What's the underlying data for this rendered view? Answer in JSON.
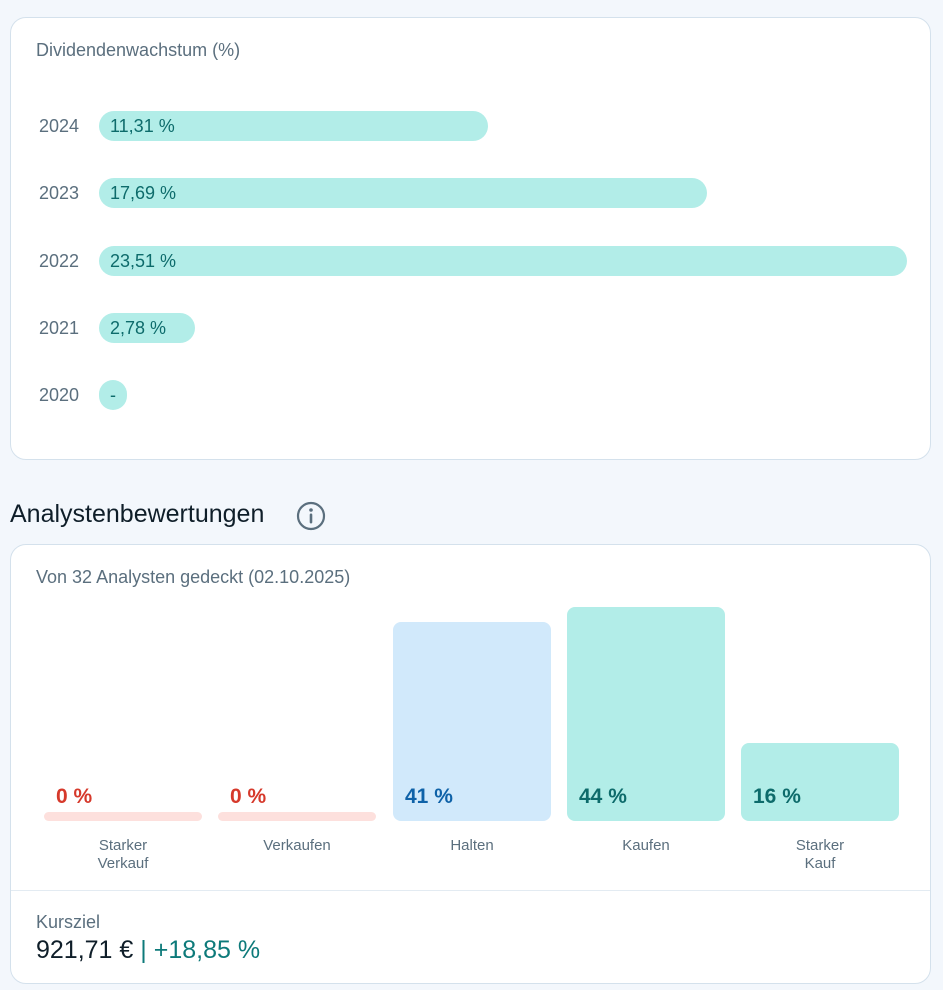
{
  "dividend_card": {
    "title": "Dividendenwachstum (%)"
  },
  "analyst_section": {
    "heading": "Analystenbewertungen",
    "info_icon": "info-icon",
    "subtitle": "Von 32 Analysten gedeckt (02.10.2025)",
    "target_label": "Kursziel",
    "target_value": "921,71 €",
    "target_separator": " | ",
    "target_change": "+18,85 %"
  },
  "chart_data": [
    {
      "type": "bar",
      "orientation": "horizontal",
      "title": "Dividendenwachstum (%)",
      "categories": [
        "2024",
        "2023",
        "2022",
        "2021",
        "2020"
      ],
      "values": [
        11.31,
        17.69,
        23.51,
        2.78,
        null
      ],
      "labels": [
        "11,31 %",
        "17,69 %",
        "23,51 %",
        "2,78 %",
        "-"
      ],
      "color": "#b2ede8",
      "label_color": "#0d6b6b"
    },
    {
      "type": "bar",
      "title": "Von 32 Analysten gedeckt (02.10.2025)",
      "categories": [
        "Starker\nVerkauf",
        "Verkaufen",
        "Halten",
        "Kaufen",
        "Starker\nKauf"
      ],
      "values": [
        0,
        0,
        41,
        44,
        16
      ],
      "labels": [
        "0 %",
        "0 %",
        "41 %",
        "44 %",
        "16 %"
      ],
      "bar_colors": [
        "#fde0dd",
        "#fde0dd",
        "#d1e9fb",
        "#b2ede8",
        "#b2ede8"
      ],
      "label_colors": [
        "#d6392b",
        "#d6392b",
        "#0f62a8",
        "#0d6b6b",
        "#0d6b6b"
      ]
    }
  ]
}
